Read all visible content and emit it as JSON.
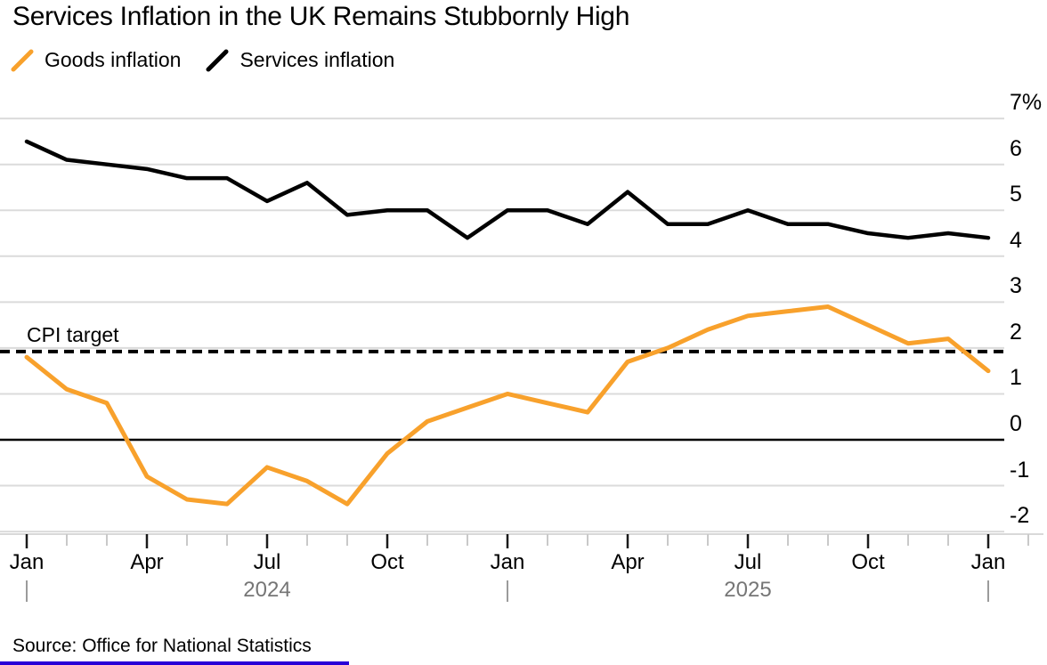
{
  "title": "Services Inflation in the UK Remains Stubbornly High",
  "legend": [
    {
      "label": "Goods inflation",
      "color": "#F8A12C"
    },
    {
      "label": "Services inflation",
      "color": "#000000"
    }
  ],
  "annotation": {
    "cpi_target_label": "CPI target"
  },
  "source": "Source: Office for National Statistics",
  "colors": {
    "goods_line": "#F8A12C",
    "services_line": "#000000",
    "gridline": "#DBDBDB",
    "zero_line": "#000000",
    "axis_line": "#D9D9D9",
    "minor_tick": "#C9C9C9",
    "major_tick": "#1A1A1A",
    "year_text": "#767676",
    "accent_bar": "#2800D7"
  },
  "chart_data": {
    "type": "line",
    "x_unit": "month",
    "x_start": "2024-01",
    "x_end": "2026-01",
    "months_count": 25,
    "x_tick_labels": [
      "Jan",
      "Apr",
      "Jul",
      "Oct",
      "Jan",
      "Apr",
      "Jul",
      "Oct",
      "Jan"
    ],
    "year_labels": [
      "2024",
      "2025"
    ],
    "y_tick_labels": [
      "7%",
      "6",
      "5",
      "4",
      "3",
      "2",
      "1",
      "0",
      "-1",
      "-2"
    ],
    "y_tick_values": [
      7,
      6,
      5,
      4,
      3,
      2,
      1,
      0,
      -1,
      -2
    ],
    "ylim": [
      -2.6,
      7.4
    ],
    "grid": true,
    "legend_position": "top-left",
    "series": [
      {
        "name": "Goods inflation",
        "values": [
          1.8,
          1.1,
          0.8,
          -0.8,
          -1.3,
          -1.4,
          -0.6,
          -0.9,
          -1.4,
          -0.3,
          0.4,
          0.7,
          1.0,
          0.8,
          0.6,
          1.7,
          2.0,
          2.4,
          2.7,
          2.8,
          2.9,
          2.5,
          2.1,
          2.2,
          1.5
        ]
      },
      {
        "name": "Services inflation",
        "values": [
          6.5,
          6.1,
          6.0,
          5.9,
          5.7,
          5.7,
          5.2,
          5.6,
          4.9,
          5.0,
          5.0,
          4.4,
          5.0,
          5.0,
          4.7,
          5.4,
          4.7,
          4.7,
          5.0,
          4.7,
          4.7,
          4.5,
          4.4,
          4.5,
          4.4
        ]
      }
    ],
    "reference_lines": [
      {
        "label": "CPI target",
        "value": 2,
        "style": "dashed"
      },
      {
        "label": "zero",
        "value": 0,
        "style": "solid"
      }
    ]
  }
}
